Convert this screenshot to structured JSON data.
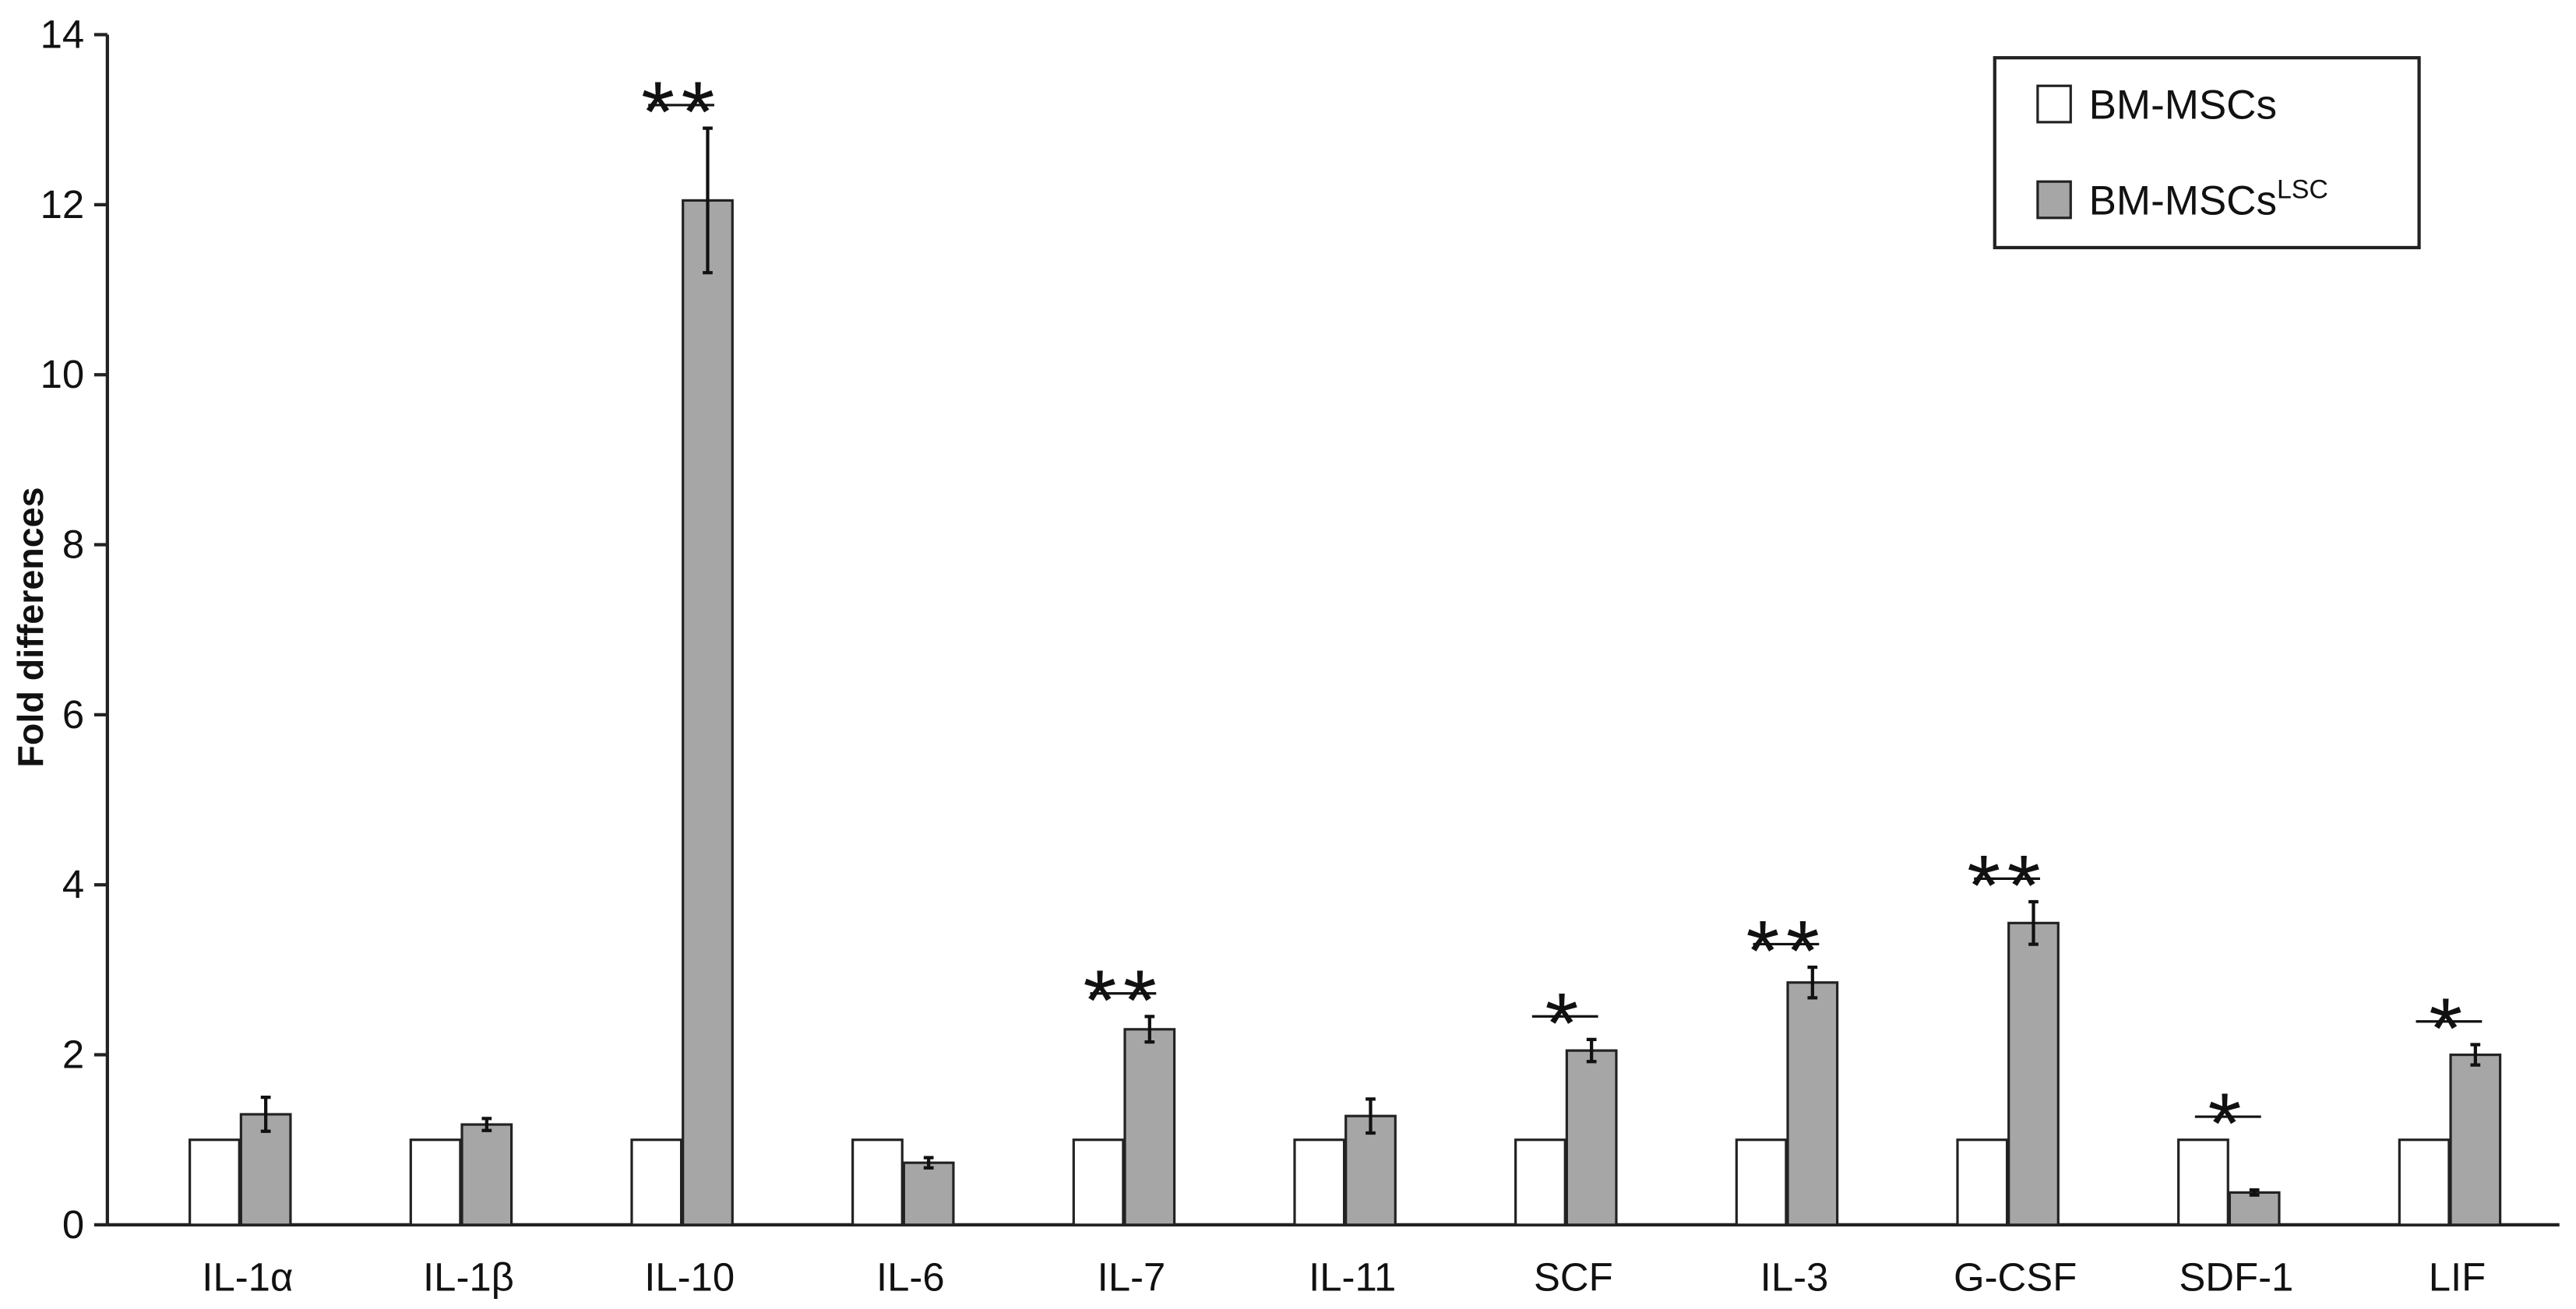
{
  "chart_data": {
    "type": "bar",
    "y_label": "Fold differences",
    "categories": [
      "IL-1α",
      "IL-1β",
      "IL-10",
      "IL-6",
      "IL-7",
      "IL-11",
      "SCF",
      "IL-3",
      "G-CSF",
      "SDF-1",
      "LIF"
    ],
    "series": [
      {
        "name": "BM-MSCs",
        "color": "#ffffff",
        "values": [
          1,
          1,
          1,
          1,
          1,
          1,
          1,
          1,
          1,
          1,
          1
        ]
      },
      {
        "name": "BM-MSCs",
        "name_superscript": "LSC",
        "color": "#a6a6a6",
        "values": [
          1.3,
          1.18,
          12.05,
          0.73,
          2.3,
          1.28,
          2.05,
          2.85,
          3.55,
          0.38,
          2.0
        ],
        "errors": [
          0.2,
          0.07,
          0.85,
          0.06,
          0.15,
          0.2,
          0.13,
          0.18,
          0.25,
          0.03,
          0.12
        ]
      }
    ],
    "annotations": [
      {
        "category": "IL-10",
        "text": "**"
      },
      {
        "category": "IL-7",
        "text": "**"
      },
      {
        "category": "SCF",
        "text": "*"
      },
      {
        "category": "IL-3",
        "text": "**"
      },
      {
        "category": "G-CSF",
        "text": "**"
      },
      {
        "category": "SDF-1",
        "text": "*"
      },
      {
        "category": "LIF",
        "text": "*"
      }
    ],
    "ylim": [
      0,
      14
    ],
    "yticks": [
      0,
      2,
      4,
      6,
      8,
      10,
      12,
      14
    ],
    "legend": "upper right",
    "grid": false
  }
}
